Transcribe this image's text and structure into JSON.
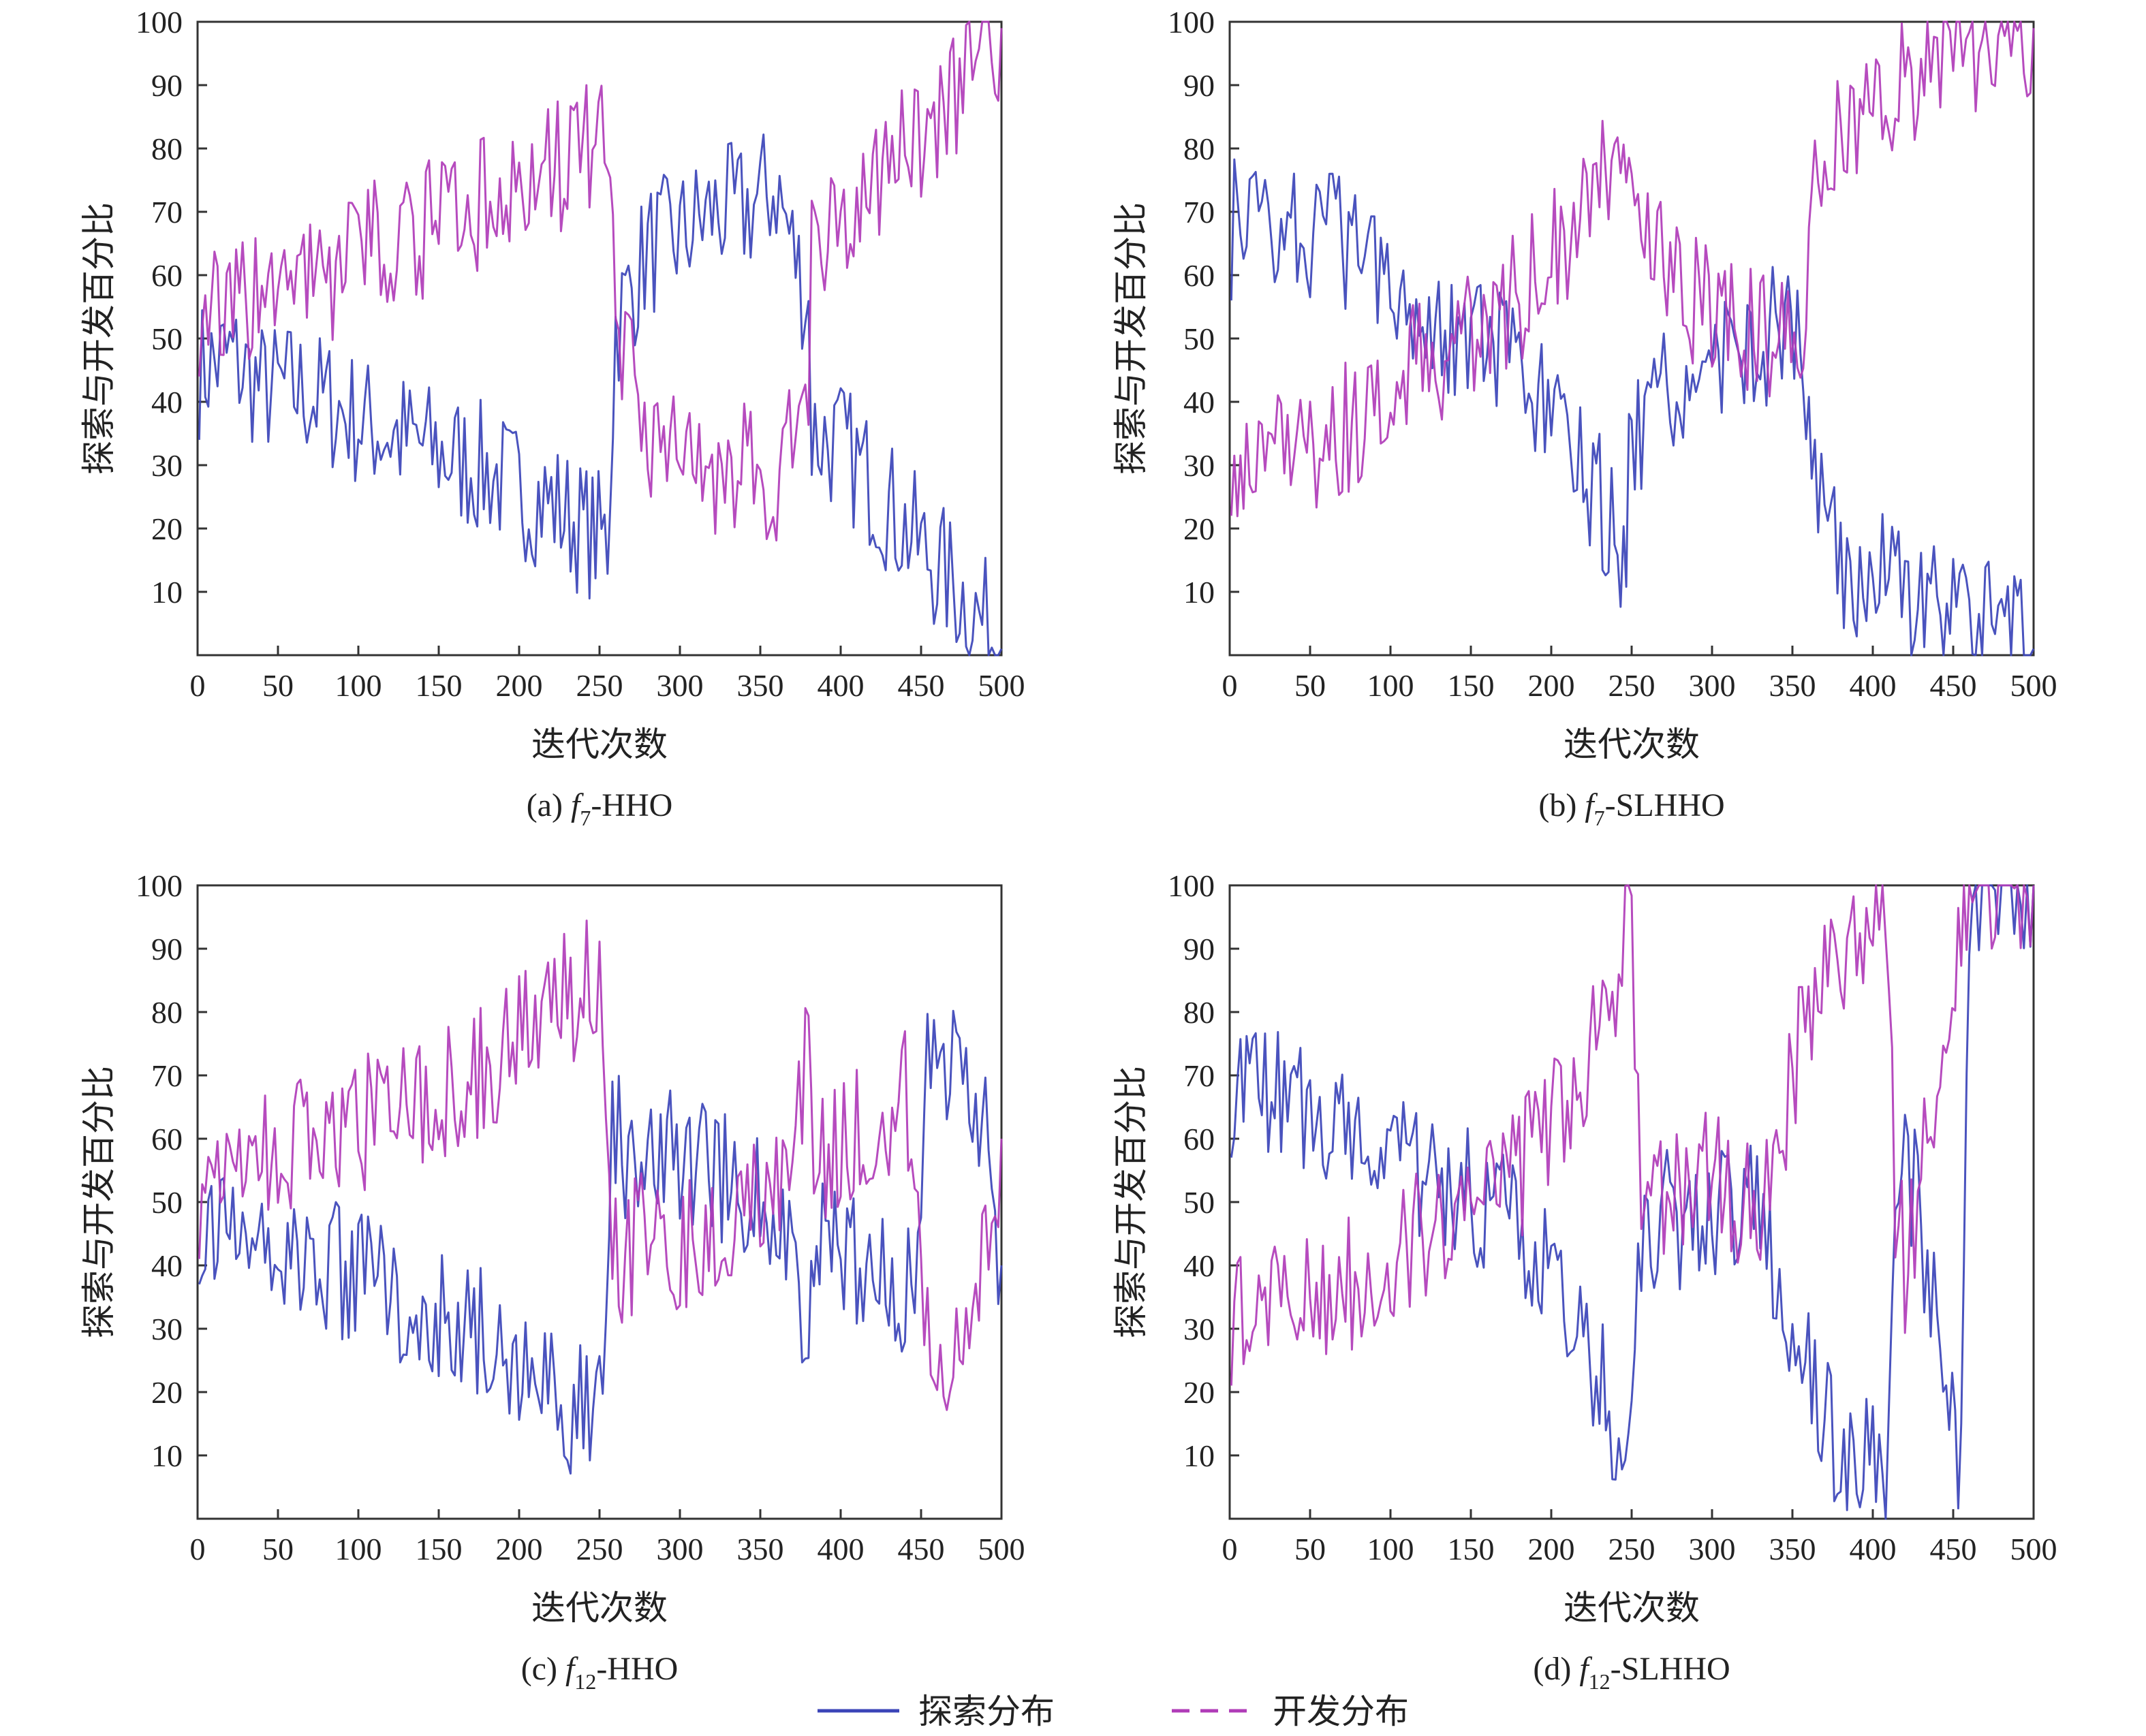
{
  "colors": {
    "explore": "#3b44b8",
    "exploit": "#b03cb8",
    "axis": "#333333"
  },
  "legend": {
    "placement": "bottom-center",
    "items": [
      {
        "label": "探索分布",
        "style": "solid",
        "color": "#3b44b8"
      },
      {
        "label": "开发分布",
        "style": "dashed",
        "color": "#b03cb8"
      }
    ]
  },
  "chart_data": [
    {
      "type": "line",
      "caption": {
        "prefix": "(a) ",
        "f": "f",
        "sub": "7",
        "suffix": "-HHO"
      },
      "xlabel": "迭代次数",
      "ylabel": "探索与开发百分比",
      "xlim": [
        0,
        500
      ],
      "ylim": [
        0,
        100
      ],
      "xticks": [
        0,
        50,
        100,
        150,
        200,
        250,
        300,
        350,
        400,
        450,
        500
      ],
      "yticks": [
        10,
        20,
        30,
        40,
        50,
        60,
        70,
        80,
        90,
        100
      ],
      "series": [
        {
          "key": "explore",
          "x": [
            1,
            20,
            40,
            60,
            80,
            100,
            120,
            140,
            160,
            180,
            200,
            220,
            240,
            255,
            260,
            280,
            300,
            320,
            340,
            360,
            380,
            382,
            400,
            420,
            440,
            460,
            480,
            500
          ],
          "values": [
            45,
            47,
            42,
            42,
            40,
            37,
            35,
            33,
            31,
            29,
            26,
            24,
            20,
            18,
            52,
            64,
            66,
            70,
            70,
            74,
            55,
            35,
            33,
            27,
            20,
            14,
            8,
            1
          ]
        },
        {
          "key": "exploit",
          "x": [
            1,
            20,
            40,
            60,
            80,
            100,
            120,
            140,
            160,
            180,
            200,
            220,
            240,
            255,
            260,
            280,
            300,
            320,
            340,
            360,
            380,
            382,
            400,
            420,
            440,
            460,
            480,
            500
          ],
          "values": [
            55,
            53,
            58,
            58,
            60,
            63,
            65,
            67,
            69,
            71,
            74,
            76,
            80,
            82,
            48,
            36,
            34,
            30,
            30,
            26,
            45,
            65,
            67,
            73,
            80,
            86,
            92,
            99
          ]
        }
      ]
    },
    {
      "type": "line",
      "caption": {
        "prefix": "(b) ",
        "f": "f",
        "sub": "7",
        "suffix": "-SLHHO"
      },
      "xlabel": "迭代次数",
      "ylabel": "探索与开发百分比",
      "xlim": [
        0,
        500
      ],
      "ylim": [
        0,
        100
      ],
      "xticks": [
        0,
        50,
        100,
        150,
        200,
        250,
        300,
        350,
        400,
        450,
        500
      ],
      "yticks": [
        10,
        20,
        30,
        40,
        50,
        60,
        70,
        80,
        90,
        100
      ],
      "series": [
        {
          "key": "explore",
          "x": [
            1,
            20,
            40,
            60,
            80,
            100,
            110,
            130,
            150,
            170,
            190,
            210,
            230,
            245,
            250,
            270,
            290,
            310,
            330,
            355,
            362,
            380,
            400,
            420,
            440,
            460,
            480,
            500
          ],
          "values": [
            67,
            70,
            68,
            66,
            64,
            63,
            56,
            53,
            50,
            46,
            40,
            33,
            24,
            15,
            34,
            40,
            44,
            47,
            50,
            52,
            30,
            14,
            12,
            10,
            7,
            5,
            3,
            1
          ]
        },
        {
          "key": "exploit",
          "x": [
            1,
            20,
            40,
            60,
            80,
            100,
            110,
            130,
            150,
            170,
            190,
            210,
            230,
            245,
            250,
            270,
            290,
            310,
            330,
            355,
            362,
            380,
            400,
            420,
            440,
            460,
            480,
            500
          ],
          "values": [
            33,
            30,
            32,
            34,
            36,
            37,
            44,
            47,
            50,
            54,
            60,
            67,
            76,
            85,
            66,
            60,
            56,
            53,
            50,
            48,
            70,
            86,
            88,
            90,
            93,
            95,
            97,
            99
          ]
        }
      ]
    },
    {
      "type": "line",
      "caption": {
        "prefix": "(c) ",
        "f": "f",
        "sub": "12",
        "suffix": "-HHO"
      },
      "xlabel": "迭代次数",
      "ylabel": "探索与开发百分比",
      "xlim": [
        0,
        500
      ],
      "ylim": [
        0,
        100
      ],
      "xticks": [
        0,
        50,
        100,
        150,
        200,
        250,
        300,
        350,
        400,
        450,
        500
      ],
      "yticks": [
        10,
        20,
        30,
        40,
        50,
        60,
        70,
        80,
        90,
        100
      ],
      "series": [
        {
          "key": "explore",
          "x": [
            1,
            20,
            40,
            60,
            80,
            100,
            120,
            140,
            160,
            180,
            200,
            220,
            240,
            252,
            258,
            280,
            300,
            320,
            340,
            360,
            380,
            385,
            400,
            420,
            440,
            448,
            452,
            470,
            490,
            500
          ],
          "values": [
            48,
            45,
            43,
            42,
            40,
            38,
            36,
            34,
            31,
            29,
            25,
            20,
            16,
            15,
            60,
            55,
            58,
            55,
            52,
            50,
            25,
            45,
            42,
            38,
            34,
            40,
            74,
            72,
            60,
            40
          ]
        },
        {
          "key": "exploit",
          "x": [
            1,
            20,
            40,
            60,
            80,
            100,
            120,
            140,
            160,
            180,
            200,
            220,
            240,
            252,
            258,
            280,
            300,
            320,
            340,
            360,
            380,
            385,
            400,
            420,
            440,
            448,
            452,
            470,
            490,
            500
          ],
          "values": [
            52,
            55,
            57,
            58,
            60,
            62,
            64,
            66,
            69,
            71,
            75,
            80,
            84,
            85,
            40,
            45,
            42,
            45,
            48,
            50,
            75,
            55,
            58,
            62,
            66,
            60,
            26,
            28,
            40,
            60
          ]
        }
      ]
    },
    {
      "type": "line",
      "caption": {
        "prefix": "(d) ",
        "f": "f",
        "sub": "12",
        "suffix": "-SLHHO"
      },
      "xlabel": "迭代次数",
      "ylabel": "探索与开发百分比",
      "xlim": [
        0,
        500
      ],
      "ylim": [
        0,
        100
      ],
      "xticks": [
        0,
        50,
        100,
        150,
        200,
        250,
        300,
        350,
        400,
        450,
        500
      ],
      "yticks": [
        10,
        20,
        30,
        40,
        50,
        60,
        70,
        80,
        90,
        100
      ],
      "series": [
        {
          "key": "explore",
          "x": [
            1,
            20,
            40,
            60,
            80,
            100,
            120,
            140,
            160,
            180,
            200,
            220,
            240,
            250,
            256,
            270,
            290,
            310,
            330,
            350,
            370,
            390,
            410,
            414,
            420,
            440,
            455,
            460,
            500
          ],
          "values": [
            68,
            67,
            66,
            64,
            62,
            58,
            54,
            52,
            50,
            45,
            38,
            28,
            15,
            8,
            45,
            48,
            46,
            48,
            50,
            30,
            15,
            10,
            8,
            50,
            60,
            30,
            5,
            100,
            100
          ]
        },
        {
          "key": "exploit",
          "x": [
            1,
            20,
            40,
            60,
            80,
            100,
            120,
            140,
            160,
            180,
            200,
            220,
            240,
            250,
            256,
            270,
            290,
            310,
            330,
            350,
            370,
            390,
            410,
            414,
            420,
            440,
            455,
            460,
            500
          ],
          "values": [
            32,
            33,
            34,
            36,
            38,
            42,
            46,
            48,
            50,
            55,
            62,
            72,
            85,
            92,
            55,
            52,
            54,
            52,
            50,
            70,
            85,
            90,
            92,
            50,
            40,
            70,
            95,
            100,
            100
          ]
        }
      ]
    }
  ]
}
